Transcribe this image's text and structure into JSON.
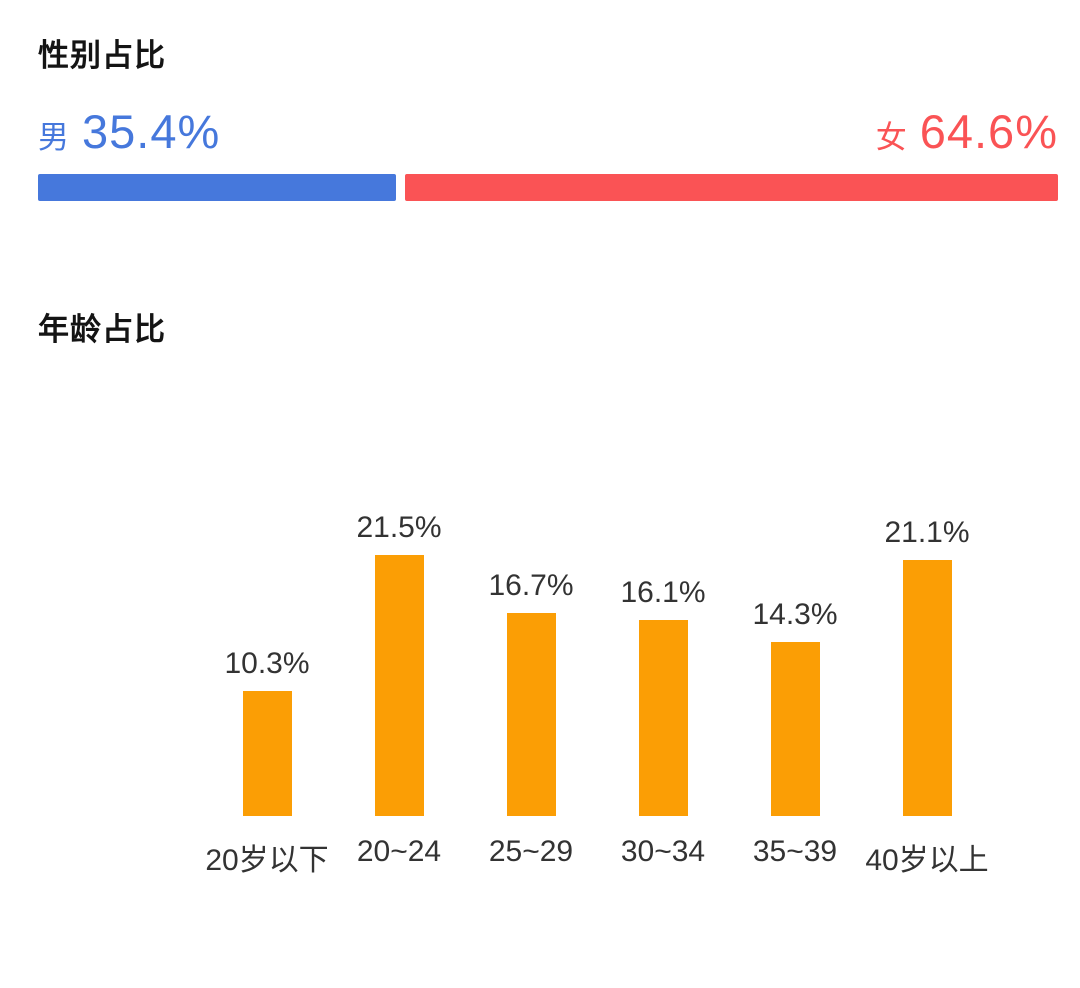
{
  "gender_section": {
    "title": "性别占比",
    "male_label": "男",
    "male_value_display": "35.4%",
    "female_label": "女",
    "female_value_display": "64.6%"
  },
  "age_section": {
    "title": "年龄占比"
  },
  "colors": {
    "male_blue": "#4678DC",
    "female_red": "#FA5355",
    "age_orange": "#FB9E05",
    "title_black": "#141414",
    "label_gray": "#333333"
  },
  "chart_data": [
    {
      "type": "bar",
      "subtype": "horizontal-stacked-100pct",
      "title": "性别占比",
      "unit": "%",
      "grid": false,
      "axes_visible": false,
      "legend_position": "labels-above-bar-ends",
      "series": [
        {
          "name": "男",
          "value": 35.4,
          "display": "35.4%",
          "color": "#4678DC"
        },
        {
          "name": "女",
          "value": 64.6,
          "display": "64.6%",
          "color": "#FA5355"
        }
      ]
    },
    {
      "type": "bar",
      "title": "年龄占比",
      "unit": "%",
      "grid": false,
      "yaxis_visible": false,
      "data_labels": true,
      "bar_color": "#FB9E05",
      "categories": [
        "20岁以下",
        "20~24",
        "25~29",
        "30~34",
        "35~39",
        "40岁以上"
      ],
      "values": [
        10.3,
        21.5,
        16.7,
        16.1,
        14.3,
        21.1
      ],
      "labels": [
        "10.3%",
        "21.5%",
        "16.7%",
        "16.1%",
        "14.3%",
        "21.1%"
      ],
      "ylim": [
        0,
        25
      ]
    }
  ]
}
